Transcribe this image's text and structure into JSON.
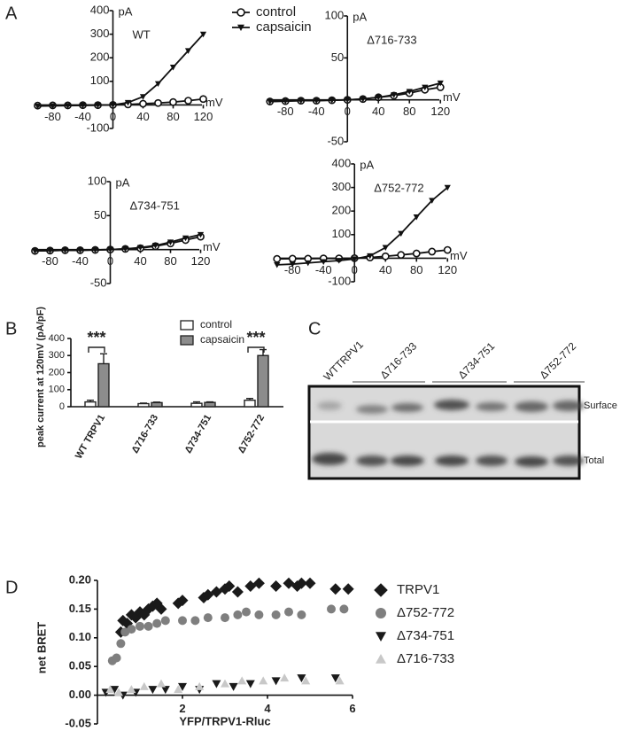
{
  "panel_labels": [
    "A",
    "B",
    "C",
    "D"
  ],
  "blot": {
    "lanes": [
      "WTTRPV1",
      "Δ716-733",
      "Δ734-751",
      "Δ752-772"
    ],
    "rows": [
      "Surface",
      "Total"
    ]
  },
  "chart_data": [
    {
      "type": "line",
      "title": "WT",
      "xlabel": "mV",
      "ylabel": "pA",
      "x": [
        -100,
        -80,
        -60,
        -40,
        -20,
        0,
        20,
        40,
        60,
        80,
        100,
        120
      ],
      "xlim": [
        -110,
        130
      ],
      "ylim": [
        -100,
        400
      ],
      "xticks": [
        -80,
        -40,
        0,
        40,
        80,
        120
      ],
      "yticks": [
        -100,
        100,
        200,
        300,
        400
      ],
      "series": [
        {
          "name": "control",
          "color": "#111111",
          "marker": "circle-open",
          "values": [
            -3,
            -2,
            -2,
            -1,
            -1,
            0,
            2,
            5,
            8,
            12,
            18,
            25
          ]
        },
        {
          "name": "capsaicin",
          "color": "#111111",
          "marker": "triangle-down",
          "values": [
            -5,
            -4,
            -3,
            -2,
            -1,
            0,
            10,
            35,
            90,
            160,
            230,
            300
          ]
        }
      ]
    },
    {
      "type": "line",
      "title": "Δ716-733",
      "xlabel": "mV",
      "ylabel": "pA",
      "x": [
        -100,
        -80,
        -60,
        -40,
        -20,
        0,
        20,
        40,
        60,
        80,
        100,
        120
      ],
      "xlim": [
        -110,
        130
      ],
      "ylim": [
        -50,
        100
      ],
      "xticks": [
        -80,
        -40,
        0,
        40,
        80,
        120
      ],
      "yticks": [
        -50,
        50,
        100
      ],
      "series": [
        {
          "color": "#111111",
          "marker": "circle-open",
          "values": [
            -2,
            -1.5,
            -1,
            -1,
            -0.5,
            0,
            1,
            3,
            5,
            8,
            12,
            15
          ]
        },
        {
          "color": "#111111",
          "marker": "triangle-down",
          "values": [
            -2,
            -1.5,
            -1,
            -1,
            -0.5,
            0,
            1,
            3,
            6,
            10,
            15,
            20
          ]
        }
      ]
    },
    {
      "type": "line",
      "title": "Δ734-751",
      "xlabel": "mV",
      "ylabel": "pA",
      "x": [
        -100,
        -80,
        -60,
        -40,
        -20,
        0,
        20,
        40,
        60,
        80,
        100,
        120
      ],
      "xlim": [
        -110,
        130
      ],
      "ylim": [
        -50,
        100
      ],
      "xticks": [
        -80,
        -40,
        0,
        40,
        80,
        120
      ],
      "yticks": [
        -50,
        50,
        100
      ],
      "series": [
        {
          "color": "#111111",
          "marker": "circle-open",
          "values": [
            -2,
            -1.5,
            -1,
            -1,
            -0.5,
            0,
            1,
            2,
            5,
            9,
            14,
            19
          ]
        },
        {
          "color": "#111111",
          "marker": "triangle-down",
          "values": [
            -2,
            -1.5,
            -1,
            -1,
            -0.5,
            0,
            1,
            3,
            6,
            11,
            17,
            22
          ]
        }
      ]
    },
    {
      "type": "line",
      "title": "Δ752-772",
      "xlabel": "mV",
      "ylabel": "pA",
      "x": [
        -100,
        -80,
        -60,
        -40,
        -20,
        0,
        20,
        40,
        60,
        80,
        100,
        120
      ],
      "xlim": [
        -110,
        130
      ],
      "ylim": [
        -100,
        400
      ],
      "xticks": [
        -80,
        -40,
        0,
        40,
        80,
        120
      ],
      "yticks": [
        -100,
        100,
        200,
        300,
        400
      ],
      "series": [
        {
          "color": "#111111",
          "marker": "circle-open",
          "values": [
            -3,
            -2,
            -2,
            -1,
            -1,
            0,
            3,
            8,
            14,
            20,
            28,
            35
          ]
        },
        {
          "color": "#111111",
          "marker": "triangle-down",
          "values": [
            -28,
            -25,
            -20,
            -15,
            -10,
            -3,
            10,
            45,
            105,
            175,
            245,
            300
          ]
        }
      ]
    },
    {
      "type": "bar",
      "ylabel": "peak current at 120mV (pA/pF)",
      "categories": [
        "WT TRPV1",
        "Δ716-733",
        "Δ734-751",
        "Δ752-772"
      ],
      "ylim": [
        0,
        400
      ],
      "yticks": [
        0,
        100,
        200,
        300,
        400
      ],
      "annotations": [
        "***",
        "***"
      ],
      "series": [
        {
          "name": "control",
          "color": "#ffffff",
          "values": [
            28,
            18,
            20,
            38
          ],
          "errors": [
            10,
            3,
            8,
            10
          ]
        },
        {
          "name": "capsaicin",
          "color": "#8c8c8c",
          "values": [
            252,
            24,
            25,
            300
          ],
          "errors": [
            58,
            3,
            3,
            35
          ]
        }
      ]
    },
    {
      "type": "scatter",
      "xlabel": "YFP/TRPV1-Rluc",
      "ylabel": "net BRET",
      "xlim": [
        0,
        6
      ],
      "ylim": [
        -0.05,
        0.2
      ],
      "xticks": [
        2,
        4,
        6
      ],
      "yticks": [
        {
          "value": -0.05,
          "label": "-0.05"
        },
        {
          "value": 0,
          "label": "0.00"
        },
        {
          "value": 0.05,
          "label": "0.05"
        },
        {
          "value": 0.1,
          "label": "0.10"
        },
        {
          "value": 0.15,
          "label": "0.15"
        },
        {
          "value": 0.2,
          "label": "0.20"
        }
      ],
      "series": [
        {
          "name": "TRPV1",
          "color": "#1a1a1a",
          "marker": "diamond",
          "x": [
            0.55,
            0.6,
            0.7,
            0.8,
            0.9,
            1.0,
            1.1,
            1.2,
            1.3,
            1.4,
            1.5,
            1.9,
            2.0,
            2.5,
            2.6,
            2.8,
            3.0,
            3.1,
            3.3,
            3.6,
            3.8,
            4.2,
            4.5,
            4.7,
            4.8,
            5.0,
            5.6,
            5.9
          ],
          "values": [
            0.11,
            0.13,
            0.125,
            0.14,
            0.135,
            0.145,
            0.14,
            0.15,
            0.155,
            0.16,
            0.15,
            0.16,
            0.165,
            0.17,
            0.175,
            0.18,
            0.185,
            0.19,
            0.18,
            0.19,
            0.195,
            0.19,
            0.195,
            0.19,
            0.195,
            0.195,
            0.185,
            0.185
          ]
        },
        {
          "name": "Δ752-772",
          "color": "#7f7f7f",
          "marker": "circle",
          "x": [
            0.35,
            0.45,
            0.55,
            0.65,
            0.8,
            1.0,
            1.2,
            1.4,
            1.6,
            2.0,
            2.3,
            2.6,
            3.0,
            3.3,
            3.5,
            3.8,
            4.2,
            4.5,
            4.8,
            5.5,
            5.8
          ],
          "values": [
            0.06,
            0.065,
            0.09,
            0.11,
            0.115,
            0.12,
            0.12,
            0.125,
            0.13,
            0.13,
            0.13,
            0.135,
            0.135,
            0.14,
            0.145,
            0.14,
            0.14,
            0.145,
            0.14,
            0.15,
            0.15
          ]
        },
        {
          "name": "Δ734-751",
          "color": "#1a1a1a",
          "marker": "triangle-down",
          "x": [
            0.2,
            0.4,
            0.6,
            0.9,
            1.3,
            1.6,
            2.0,
            2.4,
            2.8,
            3.2,
            3.6,
            4.2,
            4.8,
            5.6
          ],
          "values": [
            0.005,
            0.01,
            0.0,
            0.005,
            0.01,
            0.01,
            0.015,
            0.01,
            0.02,
            0.015,
            0.02,
            0.025,
            0.03,
            0.03
          ]
        },
        {
          "name": "Δ716-733",
          "color": "#c8c8c8",
          "marker": "triangle-up",
          "x": [
            0.3,
            0.5,
            0.8,
            1.1,
            1.5,
            1.9,
            2.4,
            3.0,
            3.4,
            3.9,
            4.4,
            4.9,
            5.7
          ],
          "values": [
            0.01,
            0.005,
            0.01,
            0.015,
            0.02,
            0.01,
            0.015,
            0.02,
            0.025,
            0.025,
            0.03,
            0.025,
            0.025
          ]
        }
      ]
    }
  ]
}
